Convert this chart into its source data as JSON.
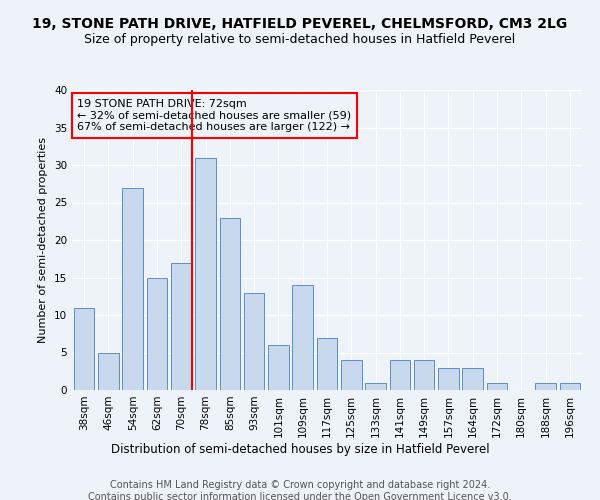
{
  "title1": "19, STONE PATH DRIVE, HATFIELD PEVEREL, CHELMSFORD, CM3 2LG",
  "title2": "Size of property relative to semi-detached houses in Hatfield Peverel",
  "xlabel": "Distribution of semi-detached houses by size in Hatfield Peverel",
  "ylabel": "Number of semi-detached properties",
  "categories": [
    "38sqm",
    "46sqm",
    "54sqm",
    "62sqm",
    "70sqm",
    "78sqm",
    "85sqm",
    "93sqm",
    "101sqm",
    "109sqm",
    "117sqm",
    "125sqm",
    "133sqm",
    "141sqm",
    "149sqm",
    "157sqm",
    "164sqm",
    "172sqm",
    "180sqm",
    "188sqm",
    "196sqm"
  ],
  "values": [
    11,
    5,
    27,
    15,
    17,
    31,
    23,
    13,
    6,
    14,
    7,
    4,
    1,
    4,
    4,
    3,
    3,
    1,
    0,
    1,
    1
  ],
  "bar_color": "#c9d9ed",
  "bar_edge_color": "#5b8fc9",
  "red_line_index": 4,
  "annotation_title": "19 STONE PATH DRIVE: 72sqm",
  "annotation_line1": "← 32% of semi-detached houses are smaller (59)",
  "annotation_line2": "67% of semi-detached houses are larger (122) →",
  "ylim": [
    0,
    40
  ],
  "yticks": [
    0,
    5,
    10,
    15,
    20,
    25,
    30,
    35,
    40
  ],
  "footer1": "Contains HM Land Registry data © Crown copyright and database right 2024.",
  "footer2": "Contains public sector information licensed under the Open Government Licence v3.0.",
  "background_color": "#eef2f9",
  "grid_color": "#ffffff",
  "title1_fontsize": 10,
  "title2_fontsize": 9,
  "xlabel_fontsize": 8.5,
  "ylabel_fontsize": 8,
  "tick_fontsize": 7.5,
  "annotation_fontsize": 8,
  "footer_fontsize": 7
}
